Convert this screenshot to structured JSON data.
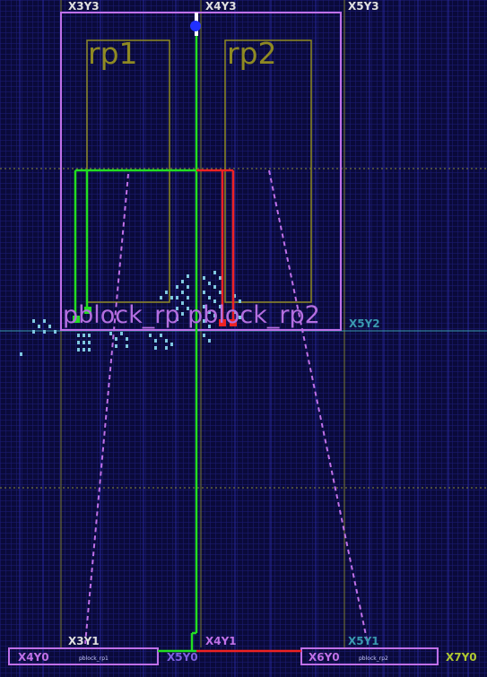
{
  "clock_regions": {
    "x3y3": "X3Y3",
    "x4y3": "X4Y3",
    "x5y3": "X5Y3",
    "x5y2": "X5Y2",
    "x3y1": "X3Y1",
    "x4y1": "X4Y1",
    "x5y1": "X5Y1",
    "x4y0": "X4Y0",
    "x5y0": "X5Y0",
    "x6y0": "X6Y0",
    "x7y0": "X7Y0"
  },
  "regions": {
    "rp1": "rp1",
    "rp2": "rp2",
    "pblock_text": "pblock_rp pblock_rp2",
    "pblock_rp1_small": "pblock_rp1",
    "pblock_rp2_small": "pblock_rp2"
  },
  "colors": {
    "background": "#0a0a3a",
    "grid": "#2a2a9a",
    "pblock": "#c070e8",
    "reconfig_partition": "#8f8a22",
    "net_green": "#22dd22",
    "net_red": "#ee2222",
    "cells": "#7fc8e0"
  }
}
